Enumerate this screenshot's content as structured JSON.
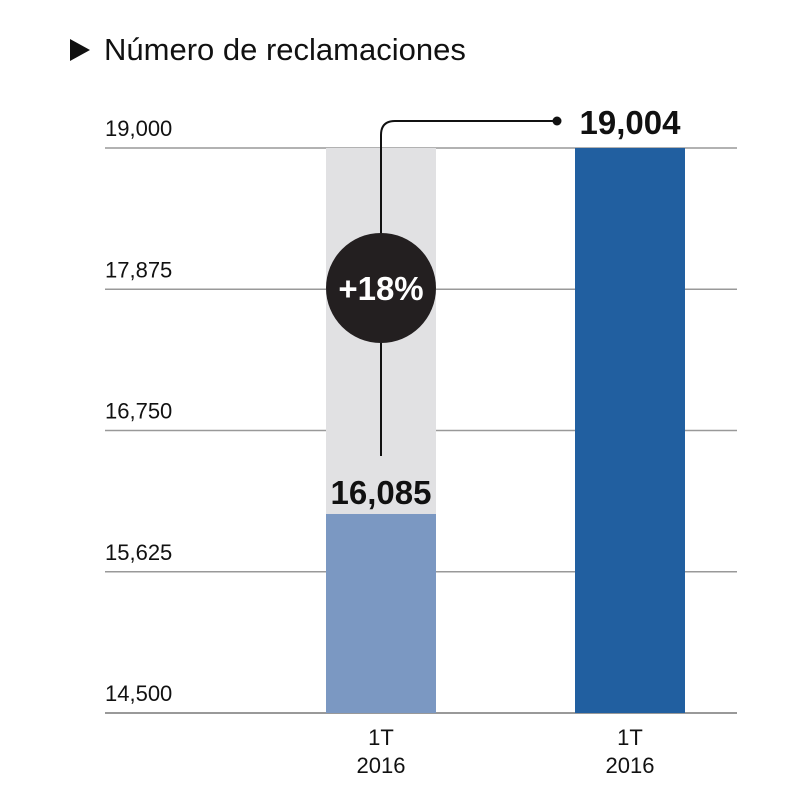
{
  "chart_data": {
    "type": "bar",
    "title": "Número de reclamaciones",
    "categories": [
      "1T 2016",
      "1T 2016"
    ],
    "category_lines": [
      [
        "1T",
        "2016"
      ],
      [
        "1T",
        "2016"
      ]
    ],
    "values": [
      16085,
      19004
    ],
    "value_labels": [
      "16,085",
      "19,004"
    ],
    "ylim": [
      14500,
      19000
    ],
    "yticks": [
      14500,
      15625,
      16750,
      17875,
      19000
    ],
    "ytick_labels": [
      "14,500",
      "15,625",
      "16,750",
      "17,875",
      "19,000"
    ],
    "grid": true,
    "change_label": "+18%",
    "colors": {
      "bar_first": "#7b98c2",
      "bar_second": "#215fa0",
      "bar_background": "#e1e1e3",
      "badge": "#231f20",
      "grid": "#999999"
    }
  }
}
